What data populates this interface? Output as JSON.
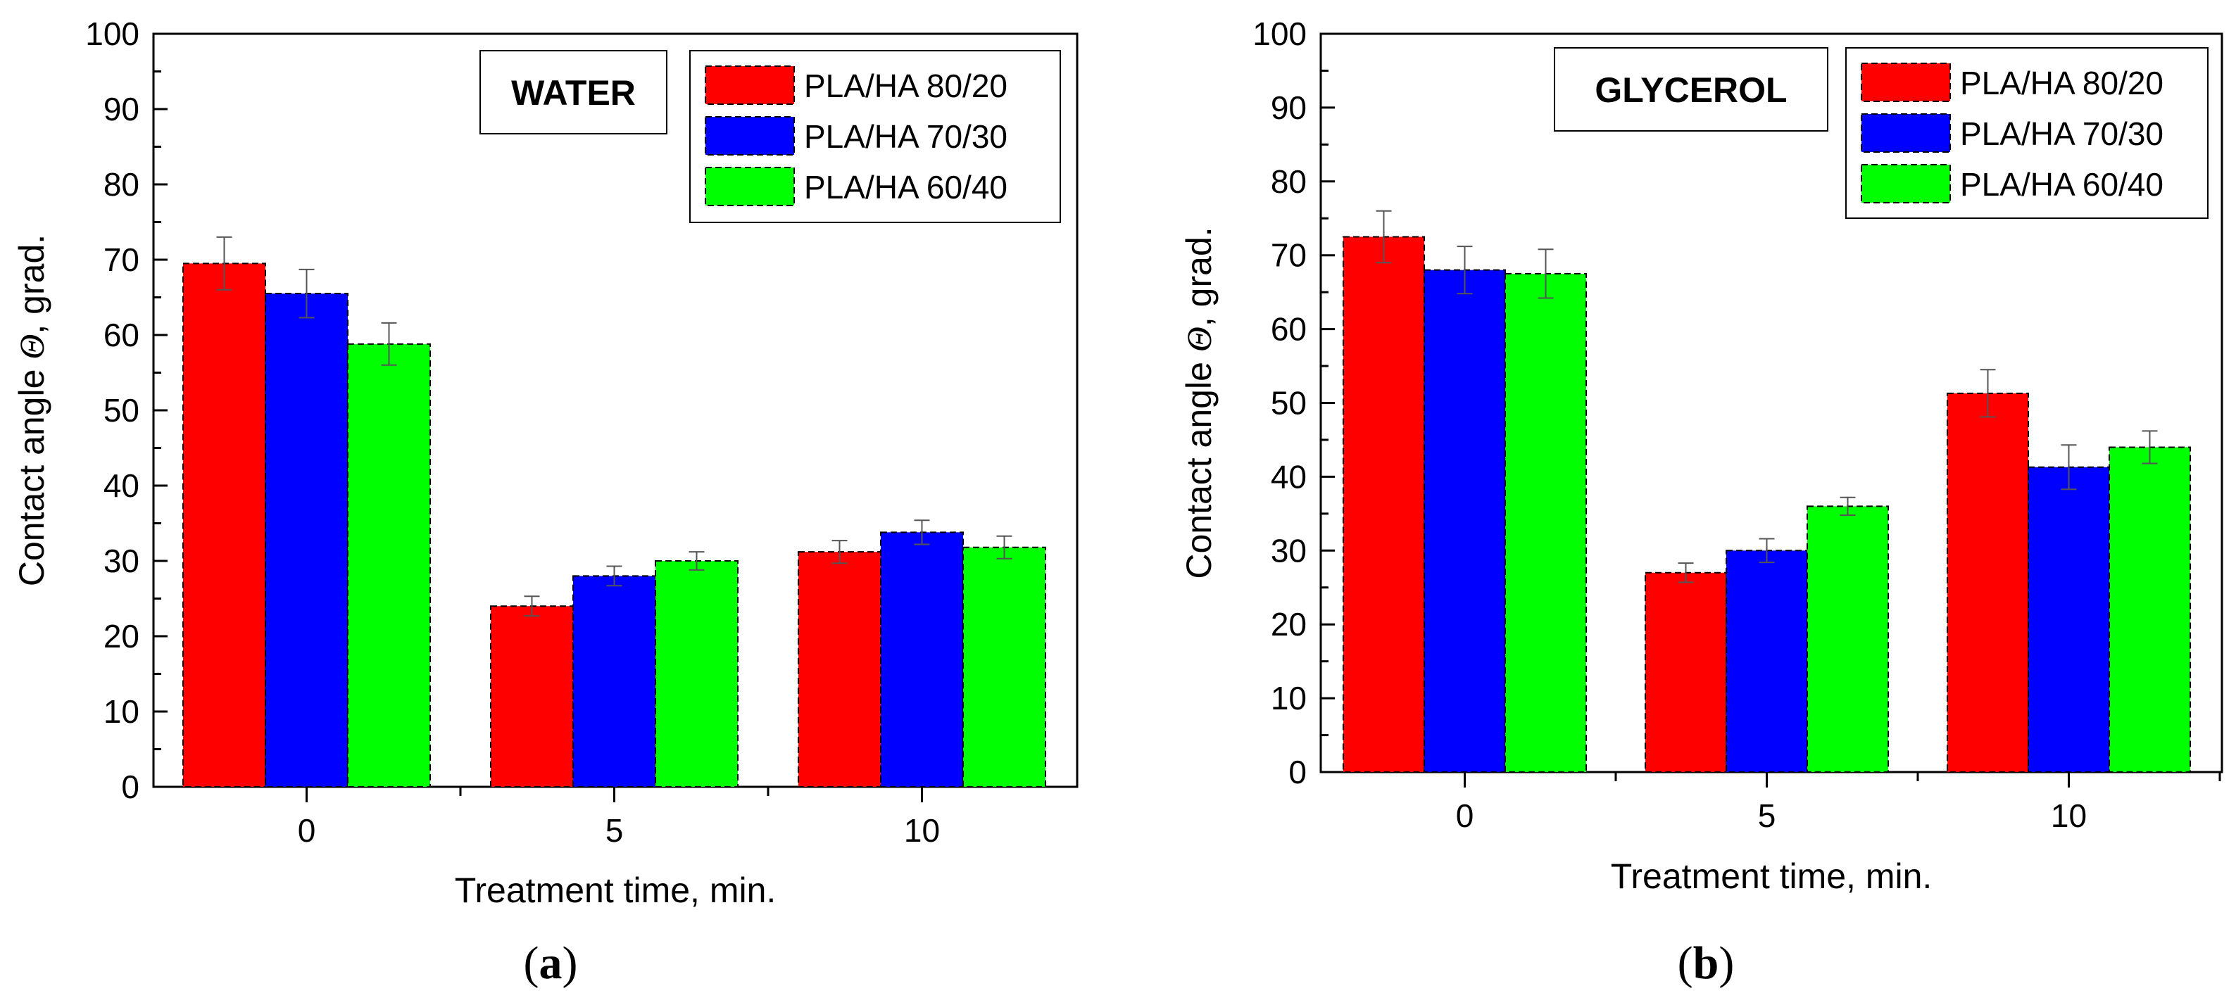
{
  "chart_data": [
    {
      "type": "bar",
      "panel_label": "a",
      "title": "WATER",
      "categories": [
        "0",
        "5",
        "10"
      ],
      "xlabel": "Treatment time, min.",
      "ylabel_prefix": "Contact angle ",
      "ylabel_symbol": "Θ",
      "ylabel_suffix": ", grad.",
      "ylim": [
        0,
        100
      ],
      "yticks": [
        0,
        10,
        20,
        30,
        40,
        50,
        60,
        70,
        80,
        90,
        100
      ],
      "grid": false,
      "legend_position": "top-right",
      "series": [
        {
          "name": "PLA/HA 80/20",
          "color": "#ff0000",
          "values": [
            69.5,
            24.0,
            31.2
          ],
          "errors": [
            3.5,
            1.3,
            1.5
          ]
        },
        {
          "name": "PLA/HA 70/30",
          "color": "#0000ff",
          "values": [
            65.5,
            28.0,
            33.8
          ],
          "errors": [
            3.2,
            1.3,
            1.6
          ]
        },
        {
          "name": "PLA/HA 60/40",
          "color": "#00ff00",
          "values": [
            58.8,
            30.0,
            31.8
          ],
          "errors": [
            2.8,
            1.2,
            1.5
          ]
        }
      ]
    },
    {
      "type": "bar",
      "panel_label": "b",
      "title": "GLYCEROL",
      "categories": [
        "0",
        "5",
        "10"
      ],
      "xlabel": "Treatment time, min.",
      "ylabel_prefix": "Contact angle ",
      "ylabel_symbol": "Θ",
      "ylabel_suffix": ", grad.",
      "ylim": [
        0,
        100
      ],
      "yticks": [
        0,
        10,
        20,
        30,
        40,
        50,
        60,
        70,
        80,
        90,
        100
      ],
      "grid": false,
      "legend_position": "top-right",
      "series": [
        {
          "name": "PLA/HA 80/20",
          "color": "#ff0000",
          "values": [
            72.5,
            27.0,
            51.3
          ],
          "errors": [
            3.5,
            1.3,
            3.2
          ]
        },
        {
          "name": "PLA/HA 70/30",
          "color": "#0000ff",
          "values": [
            68.0,
            30.0,
            41.3
          ],
          "errors": [
            3.2,
            1.6,
            3.0
          ]
        },
        {
          "name": "PLA/HA 60/40",
          "color": "#00ff00",
          "values": [
            67.5,
            36.0,
            44.0
          ],
          "errors": [
            3.3,
            1.2,
            2.2
          ]
        }
      ]
    }
  ]
}
